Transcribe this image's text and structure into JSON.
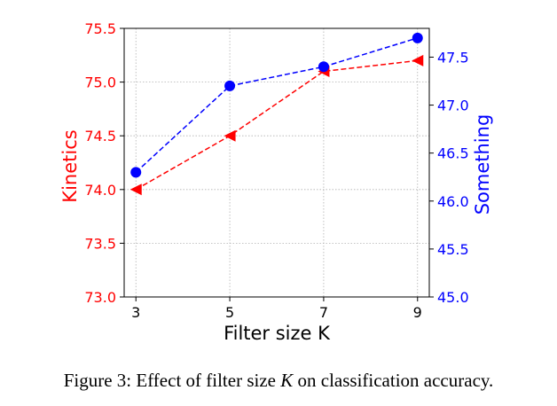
{
  "chart_data": {
    "type": "line",
    "xlabel": "Filter size K",
    "x": [
      3,
      5,
      7,
      9
    ],
    "xlim": [
      2.75,
      9.25
    ],
    "grid": true,
    "y_left": {
      "label": "Kinetics",
      "ylim": [
        73.0,
        75.5
      ],
      "ticks": [
        "73.0",
        "73.5",
        "74.0",
        "74.5",
        "75.0",
        "75.5"
      ],
      "color": "#ff0000"
    },
    "y_right": {
      "label": "Something",
      "ylim": [
        45.0,
        47.8
      ],
      "ticks": [
        "45.0",
        "45.5",
        "46.0",
        "46.5",
        "47.0",
        "47.5"
      ],
      "color": "#0000ff"
    },
    "series": [
      {
        "name": "Kinetics",
        "axis": "left",
        "values": [
          74.0,
          74.5,
          75.1,
          75.2
        ],
        "color": "#ff0000",
        "marker": "triangle-left",
        "linestyle": "dashed"
      },
      {
        "name": "Something",
        "axis": "right",
        "values": [
          46.3,
          47.2,
          47.4,
          47.7
        ],
        "color": "#0000ff",
        "marker": "circle",
        "linestyle": "dashed"
      }
    ]
  },
  "caption": {
    "prefix": "Figure 3: Effect of filter size ",
    "variable": "K",
    "suffix": " on classification accuracy."
  }
}
